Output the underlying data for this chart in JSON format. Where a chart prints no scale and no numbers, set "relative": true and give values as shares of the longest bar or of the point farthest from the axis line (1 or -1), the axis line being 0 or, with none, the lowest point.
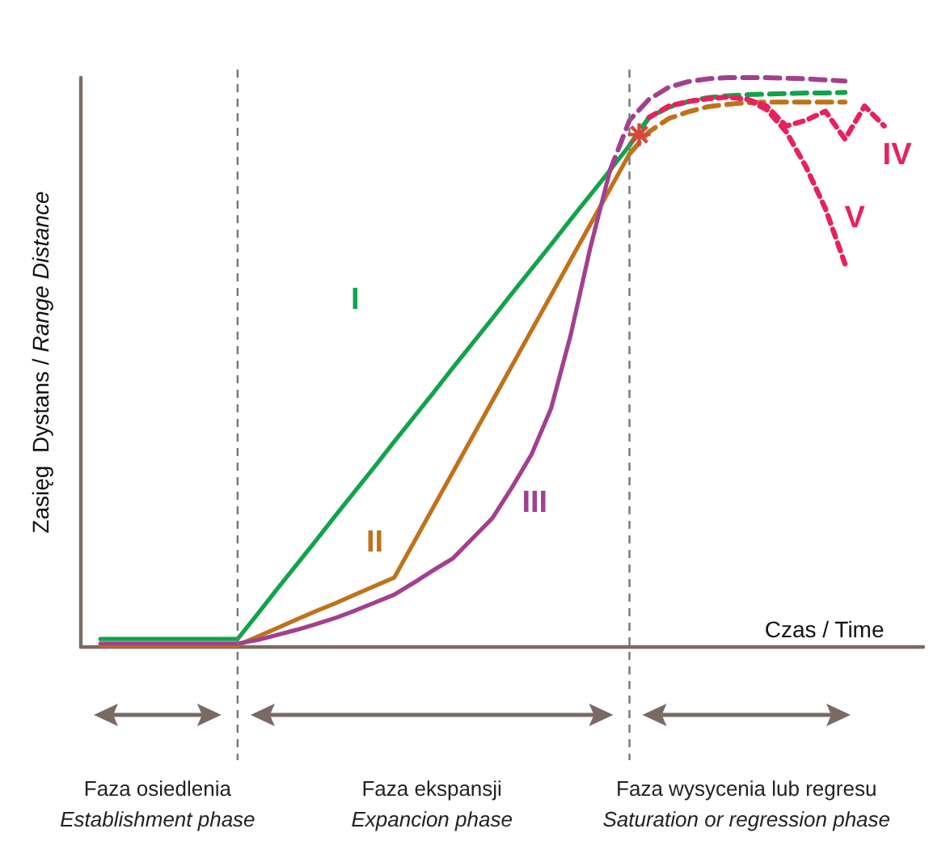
{
  "chart_data": {
    "type": "line",
    "relative": true,
    "xlabel": "Czas / Time",
    "ylabel": "Zasięg  Dystans / Range Distance",
    "grid": false,
    "legend": false,
    "marker": "none",
    "categories": [
      null,
      null,
      null,
      null,
      null,
      null,
      null,
      null,
      null,
      null,
      null,
      null,
      null,
      null,
      null,
      null,
      null,
      null,
      null,
      null,
      null,
      null,
      null,
      null,
      null,
      null,
      null,
      null,
      null,
      null,
      null,
      null,
      null,
      null,
      null,
      null,
      null,
      null,
      null,
      null,
      null,
      null,
      null,
      null
    ],
    "annotations": [
      "Faza osiedlenia\nEstablishment phase",
      "Faza ekspansji\nExpancion phase",
      "Faza wysycenia lub regresu\nSaturation or regression phase"
    ],
    "series": [
      {
        "name": "I",
        "color": "#12a34c",
        "line_style": "solid",
        "values": [
          null,
          0.014,
          0.014,
          0.014,
          0.014,
          0.014,
          0.014,
          0.014,
          0.014,
          0.057,
          0.101,
          0.144,
          0.187,
          0.231,
          0.274,
          0.317,
          0.361,
          0.404,
          0.447,
          0.491,
          0.534,
          0.577,
          0.621,
          0.664,
          0.707,
          0.751,
          0.794,
          0.837,
          0.881,
          null,
          null,
          null,
          null,
          null,
          null,
          null,
          null,
          null,
          null,
          null,
          null,
          null,
          null,
          null
        ]
      },
      {
        "color": "#12a34c",
        "line_style": "dashed",
        "values": [
          null,
          null,
          null,
          null,
          null,
          null,
          null,
          null,
          null,
          null,
          null,
          null,
          null,
          null,
          null,
          null,
          null,
          null,
          null,
          null,
          null,
          null,
          null,
          null,
          null,
          null,
          null,
          null,
          0.881,
          0.93,
          0.948,
          0.958,
          0.965,
          0.968,
          0.97,
          0.971,
          0.972,
          0.973,
          0.973,
          0.974,
          null,
          null,
          null,
          null
        ]
      },
      {
        "name": "II",
        "color": "#c0721a",
        "line_style": "solid",
        "values": [
          null,
          0.003,
          0.003,
          0.003,
          0.003,
          0.003,
          0.003,
          0.003,
          0.003,
          0.018,
          0.033,
          0.048,
          0.063,
          0.077,
          0.092,
          0.107,
          0.122,
          0.184,
          0.246,
          0.308,
          0.37,
          0.432,
          0.494,
          0.556,
          0.618,
          0.68,
          0.742,
          0.804,
          0.866,
          null,
          null,
          null,
          null,
          null,
          null,
          null,
          null,
          null,
          null,
          null,
          null,
          null,
          null,
          null
        ]
      },
      {
        "color": "#c0721a",
        "line_style": "dashed",
        "values": [
          null,
          null,
          null,
          null,
          null,
          null,
          null,
          null,
          null,
          null,
          null,
          null,
          null,
          null,
          null,
          null,
          null,
          null,
          null,
          null,
          null,
          null,
          null,
          null,
          null,
          null,
          null,
          null,
          0.866,
          0.905,
          0.928,
          0.94,
          0.949,
          0.953,
          0.956,
          0.957,
          0.957,
          0.957,
          0.957,
          0.957,
          null,
          null,
          null,
          null
        ]
      },
      {
        "name": "III",
        "color": "#a2408e",
        "line_style": "solid",
        "values": [
          null,
          0.006,
          0.006,
          0.006,
          0.006,
          0.006,
          0.006,
          0.006,
          0.006,
          0.012,
          0.021,
          0.03,
          0.04,
          0.051,
          0.064,
          0.078,
          0.092,
          0.113,
          0.135,
          0.156,
          0.191,
          0.226,
          0.28,
          0.338,
          0.419,
          0.548,
          0.701,
          0.836,
          null,
          null,
          null,
          null,
          null,
          null,
          null,
          null,
          null,
          null,
          null,
          null,
          null,
          null,
          null,
          null
        ]
      },
      {
        "color": "#a2408e",
        "line_style": "dashed",
        "values": [
          null,
          null,
          null,
          null,
          null,
          null,
          null,
          null,
          null,
          null,
          null,
          null,
          null,
          null,
          null,
          null,
          null,
          null,
          null,
          null,
          null,
          null,
          null,
          null,
          null,
          null,
          null,
          0.836,
          0.925,
          0.962,
          0.983,
          0.993,
          0.998,
          1,
          1,
          1,
          0.999,
          0.998,
          0.996,
          0.994,
          null,
          null,
          null,
          null
        ]
      },
      {
        "name": "IV",
        "color": "#e8215c",
        "line_style": "dotted",
        "values": [
          null,
          null,
          null,
          null,
          null,
          null,
          null,
          null,
          null,
          null,
          null,
          null,
          null,
          null,
          null,
          null,
          null,
          null,
          null,
          null,
          null,
          null,
          null,
          null,
          null,
          null,
          null,
          null,
          null,
          0.93,
          0.95,
          0.958,
          0.963,
          0.966,
          0.962,
          0.95,
          0.915,
          0.925,
          0.941,
          0.892,
          0.95,
          0.915,
          null,
          null
        ]
      },
      {
        "name": "V",
        "color": "#e8215c",
        "line_style": "dotted",
        "values": [
          null,
          null,
          null,
          null,
          null,
          null,
          null,
          null,
          null,
          null,
          null,
          null,
          null,
          null,
          null,
          null,
          null,
          null,
          null,
          null,
          null,
          null,
          null,
          null,
          null,
          null,
          null,
          null,
          null,
          null,
          null,
          null,
          null,
          null,
          0.962,
          0.944,
          0.905,
          0.844,
          0.77,
          0.673,
          null,
          null,
          null,
          null
        ]
      }
    ]
  }
}
